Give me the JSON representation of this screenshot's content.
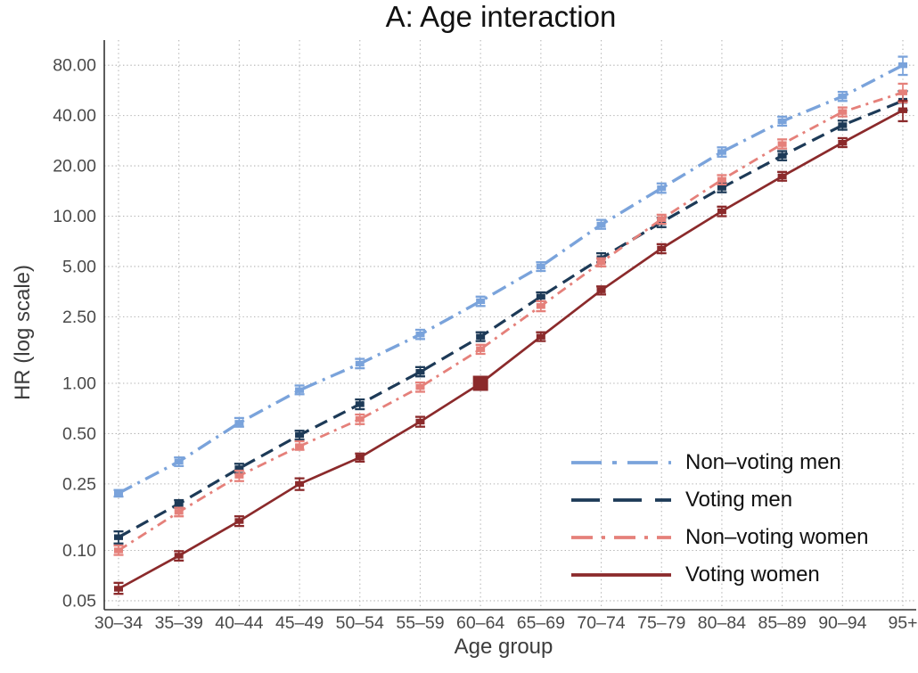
{
  "title": "A: Age interaction",
  "chart_data": {
    "type": "line",
    "title": "A: Age interaction",
    "xlabel": "Age group",
    "ylabel": "HR (log scale)",
    "y_scale": "log",
    "ylim": [
      0.043,
      110
    ],
    "grid": "dotted",
    "legend_position": "bottom-right-inside",
    "y_ticks": {
      "labels": [
        "80.00",
        "40.00",
        "20.00",
        "10.00",
        "5.00",
        "2.50",
        "1.00",
        "0.50",
        "0.25",
        "0.10",
        "0.05"
      ],
      "values": [
        80,
        40,
        20,
        10,
        5,
        2.5,
        1,
        0.5,
        0.25,
        0.1,
        0.05
      ]
    },
    "categories": [
      "30–34",
      "35–39",
      "40–44",
      "45–49",
      "50–54",
      "55–59",
      "60–64",
      "65–69",
      "70–74",
      "75–79",
      "80–84",
      "85–89",
      "90–94",
      "95+"
    ],
    "reference_point": {
      "series": "Voting women",
      "category": "60–64",
      "value": 1.0
    },
    "series": [
      {
        "name": "Non–voting men",
        "color": "#7AA3DB",
        "linetype": "longdash-dot",
        "values": [
          0.22,
          0.34,
          0.58,
          0.91,
          1.31,
          1.96,
          3.1,
          5.0,
          8.9,
          14.7,
          24.2,
          37,
          52,
          80
        ],
        "ci_low": [
          0.21,
          0.32,
          0.55,
          0.86,
          1.23,
          1.84,
          2.9,
          4.7,
          8.4,
          13.8,
          22.7,
          34.8,
          48.9,
          70
        ],
        "ci_high": [
          0.23,
          0.36,
          0.62,
          0.97,
          1.4,
          2.09,
          3.3,
          5.3,
          9.5,
          15.7,
          25.8,
          39.4,
          55.4,
          90
        ]
      },
      {
        "name": "Voting men",
        "color": "#1D3A57",
        "linetype": "longdash",
        "values": [
          0.12,
          0.19,
          0.31,
          0.49,
          0.75,
          1.17,
          1.9,
          3.3,
          5.6,
          9.2,
          14.8,
          23.0,
          35.0,
          49
        ],
        "ci_low": [
          0.11,
          0.18,
          0.29,
          0.46,
          0.7,
          1.1,
          1.79,
          3.1,
          5.3,
          8.6,
          13.9,
          21.6,
          32.9,
          43
        ],
        "ci_high": [
          0.13,
          0.2,
          0.33,
          0.52,
          0.8,
          1.25,
          2.02,
          3.5,
          6.0,
          9.8,
          15.8,
          24.5,
          37.3,
          56
        ]
      },
      {
        "name": "Non–voting women",
        "color": "#E5807A",
        "linetype": "dash-dot",
        "values": [
          0.1,
          0.17,
          0.28,
          0.42,
          0.61,
          0.95,
          1.6,
          2.9,
          5.3,
          9.6,
          16.5,
          27.0,
          42.0,
          55
        ],
        "ci_low": [
          0.094,
          0.16,
          0.26,
          0.4,
          0.57,
          0.89,
          1.5,
          2.7,
          5.0,
          9.0,
          15.5,
          25.4,
          39.5,
          48
        ],
        "ci_high": [
          0.107,
          0.18,
          0.3,
          0.45,
          0.65,
          1.01,
          1.7,
          3.1,
          5.6,
          10.2,
          17.6,
          28.8,
          44.7,
          62
        ]
      },
      {
        "name": "Voting women",
        "color": "#8B2A2B",
        "linetype": "solid",
        "values": [
          0.059,
          0.093,
          0.15,
          0.25,
          0.36,
          0.59,
          1.0,
          1.9,
          3.6,
          6.4,
          10.7,
          17.3,
          27.5,
          43
        ],
        "ci_low": [
          0.055,
          0.087,
          0.14,
          0.23,
          0.34,
          0.55,
          1.0,
          1.79,
          3.4,
          6.0,
          10.0,
          16.3,
          25.9,
          37
        ],
        "ci_high": [
          0.064,
          0.099,
          0.16,
          0.27,
          0.38,
          0.63,
          1.0,
          2.02,
          3.8,
          6.8,
          11.4,
          18.4,
          29.3,
          49
        ]
      }
    ]
  },
  "colors": {
    "axis": "#333333",
    "tick_label": "#4a4a4a",
    "grid": "#b3b3b3",
    "title": "#111111"
  }
}
